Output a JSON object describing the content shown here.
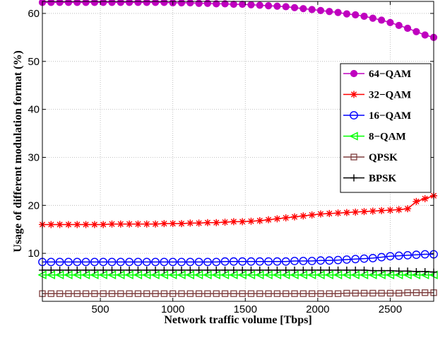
{
  "chart_data": {
    "type": "line",
    "xlabel": "Network traffic volume [Tbps]",
    "ylabel": "Usage of different modulation format (%)",
    "xlim": [
      100,
      2800
    ],
    "ylim": [
      0,
      62.5
    ],
    "xticks": [
      500,
      1000,
      1500,
      2000,
      2500
    ],
    "yticks": [
      10,
      20,
      30,
      40,
      50,
      60
    ],
    "grid": true,
    "legend_position": "right",
    "x": [
      100,
      160,
      220,
      280,
      340,
      400,
      460,
      520,
      580,
      640,
      700,
      760,
      820,
      880,
      940,
      1000,
      1060,
      1120,
      1180,
      1240,
      1300,
      1360,
      1420,
      1480,
      1540,
      1600,
      1660,
      1720,
      1780,
      1840,
      1900,
      1960,
      2020,
      2080,
      2140,
      2200,
      2260,
      2320,
      2380,
      2440,
      2500,
      2560,
      2620,
      2680,
      2740,
      2800
    ],
    "series": [
      {
        "name": "64−QAM",
        "color": "#bf00bf",
        "marker": "filled-circle",
        "values": [
          62.3,
          62.3,
          62.3,
          62.3,
          62.3,
          62.3,
          62.3,
          62.3,
          62.3,
          62.3,
          62.3,
          62.3,
          62.3,
          62.3,
          62.3,
          62.2,
          62.2,
          62.2,
          62.1,
          62.1,
          62.0,
          62.0,
          61.9,
          61.9,
          61.8,
          61.7,
          61.6,
          61.5,
          61.4,
          61.2,
          61.0,
          60.8,
          60.6,
          60.4,
          60.2,
          59.9,
          59.7,
          59.4,
          59.0,
          58.6,
          58.1,
          57.5,
          56.9,
          56.2,
          55.5,
          55.0
        ]
      },
      {
        "name": "32−QAM",
        "color": "#ff0000",
        "marker": "asterisk",
        "values": [
          16.0,
          16.0,
          16.0,
          16.0,
          16.0,
          16.0,
          16.0,
          16.0,
          16.1,
          16.1,
          16.1,
          16.1,
          16.1,
          16.1,
          16.2,
          16.2,
          16.2,
          16.3,
          16.3,
          16.4,
          16.4,
          16.5,
          16.6,
          16.6,
          16.7,
          16.8,
          17.0,
          17.2,
          17.4,
          17.6,
          17.8,
          18.0,
          18.2,
          18.3,
          18.4,
          18.5,
          18.6,
          18.7,
          18.8,
          18.9,
          19.0,
          19.1,
          19.3,
          20.8,
          21.4,
          22.0
        ]
      },
      {
        "name": "16−QAM",
        "color": "#0000ff",
        "marker": "open-circle",
        "values": [
          8.2,
          8.2,
          8.2,
          8.2,
          8.2,
          8.2,
          8.2,
          8.2,
          8.2,
          8.2,
          8.2,
          8.2,
          8.2,
          8.2,
          8.2,
          8.2,
          8.2,
          8.2,
          8.2,
          8.2,
          8.2,
          8.3,
          8.3,
          8.3,
          8.3,
          8.3,
          8.3,
          8.3,
          8.3,
          8.4,
          8.4,
          8.4,
          8.5,
          8.5,
          8.6,
          8.7,
          8.8,
          8.9,
          9.0,
          9.2,
          9.4,
          9.5,
          9.6,
          9.7,
          9.8,
          9.8
        ]
      },
      {
        "name": "8−QAM",
        "color": "#00ff00",
        "marker": "left-triangle",
        "values": [
          5.5,
          5.5,
          5.5,
          5.5,
          5.5,
          5.5,
          5.5,
          5.5,
          5.5,
          5.5,
          5.5,
          5.5,
          5.5,
          5.5,
          5.5,
          5.5,
          5.5,
          5.5,
          5.5,
          5.5,
          5.5,
          5.5,
          5.5,
          5.5,
          5.5,
          5.5,
          5.5,
          5.5,
          5.5,
          5.5,
          5.5,
          5.5,
          5.5,
          5.5,
          5.5,
          5.5,
          5.5,
          5.5,
          5.5,
          5.5,
          5.5,
          5.5,
          5.5,
          5.5,
          5.5,
          5.5
        ]
      },
      {
        "name": "QPSK",
        "color": "#7f3f3f",
        "marker": "square",
        "values": [
          1.6,
          1.6,
          1.6,
          1.6,
          1.6,
          1.6,
          1.6,
          1.6,
          1.6,
          1.6,
          1.6,
          1.6,
          1.6,
          1.6,
          1.6,
          1.6,
          1.6,
          1.6,
          1.6,
          1.6,
          1.6,
          1.6,
          1.6,
          1.6,
          1.6,
          1.6,
          1.6,
          1.6,
          1.6,
          1.6,
          1.6,
          1.6,
          1.6,
          1.6,
          1.6,
          1.7,
          1.7,
          1.7,
          1.7,
          1.7,
          1.7,
          1.7,
          1.8,
          1.8,
          1.8,
          1.8
        ]
      },
      {
        "name": "BPSK",
        "color": "#000000",
        "marker": "plus",
        "values": [
          6.5,
          6.5,
          6.5,
          6.5,
          6.5,
          6.5,
          6.5,
          6.5,
          6.5,
          6.5,
          6.5,
          6.5,
          6.5,
          6.5,
          6.5,
          6.5,
          6.5,
          6.5,
          6.5,
          6.5,
          6.5,
          6.5,
          6.5,
          6.5,
          6.5,
          6.5,
          6.5,
          6.5,
          6.5,
          6.5,
          6.5,
          6.5,
          6.5,
          6.5,
          6.5,
          6.5,
          6.5,
          6.5,
          6.4,
          6.4,
          6.4,
          6.3,
          6.3,
          6.2,
          6.2,
          6.1
        ]
      }
    ]
  }
}
